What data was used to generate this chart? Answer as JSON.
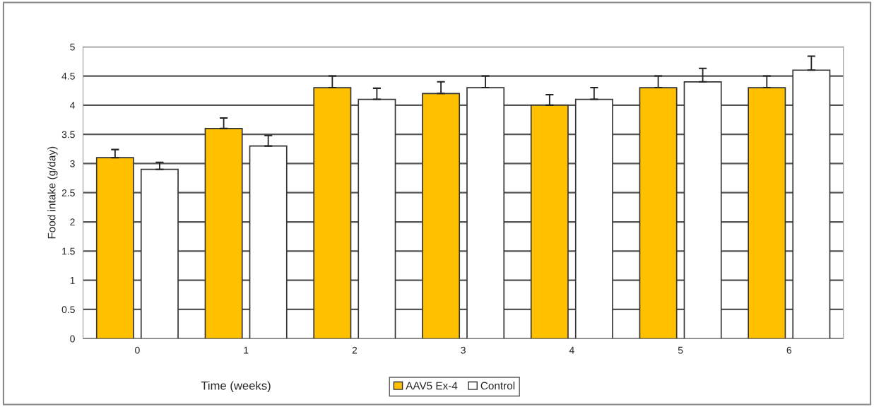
{
  "chart_data": {
    "type": "bar",
    "xlabel": "Time (weeks)",
    "ylabel": "Food intake (g/day)",
    "categories": [
      "0",
      "1",
      "2",
      "3",
      "4",
      "5",
      "6"
    ],
    "series": [
      {
        "name": "AAV5 Ex-4",
        "color": "#ffc000",
        "values": [
          3.1,
          3.6,
          4.3,
          4.2,
          4.0,
          4.3,
          4.3
        ],
        "errors": [
          0.14,
          0.18,
          0.2,
          0.2,
          0.18,
          0.2,
          0.2
        ]
      },
      {
        "name": "Control",
        "color": "#ffffff",
        "values": [
          2.9,
          3.3,
          4.1,
          4.3,
          4.1,
          4.4,
          4.6
        ],
        "errors": [
          0.12,
          0.18,
          0.19,
          0.2,
          0.2,
          0.23,
          0.24
        ]
      }
    ],
    "ylim": [
      0,
      5
    ],
    "yticks": [
      0,
      0.5,
      1,
      1.5,
      2,
      2.5,
      3,
      3.5,
      4,
      4.5,
      5
    ],
    "grid": "y",
    "legend": "bottom"
  }
}
